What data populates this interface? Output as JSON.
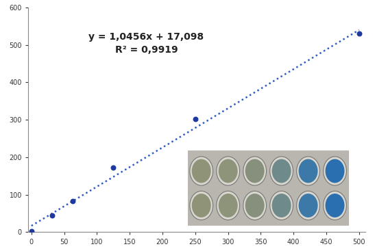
{
  "chart_data": {
    "type": "scatter",
    "series": [
      {
        "type": "scatter",
        "color": "#1f3a9e",
        "marker": "o",
        "x": [
          0,
          31.25,
          62.5,
          125,
          250,
          500
        ],
        "values": [
          3,
          45,
          83,
          172,
          303,
          530
        ]
      },
      {
        "type": "line",
        "color": "#2f5cc4",
        "line_style": "dotted",
        "x": [
          0,
          500
        ],
        "values": [
          17,
          540
        ]
      }
    ],
    "annotations": [
      "y = 1,0456x + 17,098",
      "R² = 0,9919"
    ],
    "xlim": [
      -5,
      510
    ],
    "xticks": [
      0,
      50,
      100,
      150,
      200,
      250,
      300,
      350,
      400,
      450,
      500
    ],
    "ylim": [
      0,
      600
    ],
    "yticks": [
      0,
      100,
      200,
      300,
      400,
      500,
      600
    ],
    "grid": false
  }
}
